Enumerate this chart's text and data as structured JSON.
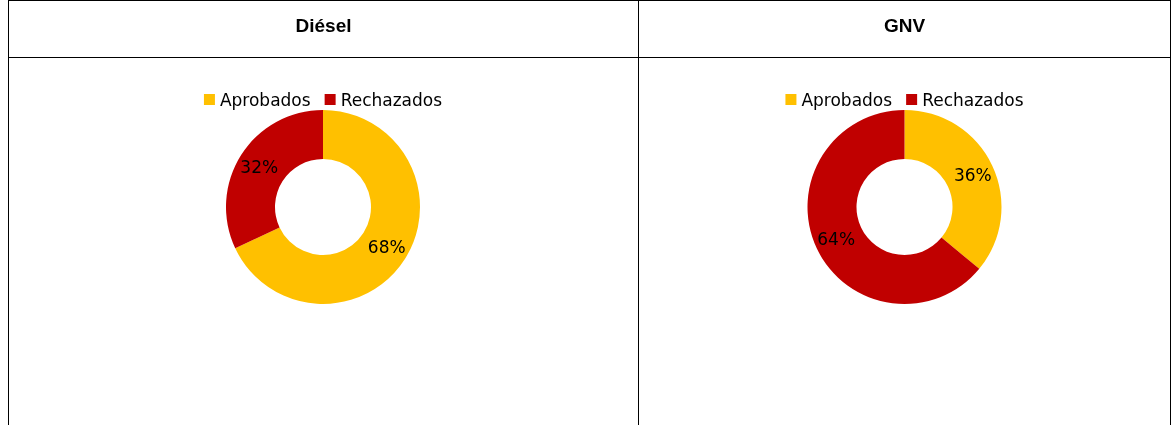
{
  "chart_data": [
    {
      "type": "donut",
      "title": "Diésel",
      "categories": [
        "Aprobados",
        "Rechazados"
      ],
      "values": [
        68,
        32
      ],
      "colors": [
        "#ffc000",
        "#c00000"
      ],
      "value_labels": [
        "68%",
        "32%"
      ],
      "legend": "top"
    },
    {
      "type": "donut",
      "title": "GNV",
      "categories": [
        "Aprobados",
        "Rechazados"
      ],
      "values": [
        36,
        64
      ],
      "colors": [
        "#ffc000",
        "#c00000"
      ],
      "value_labels": [
        "36%",
        "64%"
      ],
      "legend": "top"
    }
  ]
}
